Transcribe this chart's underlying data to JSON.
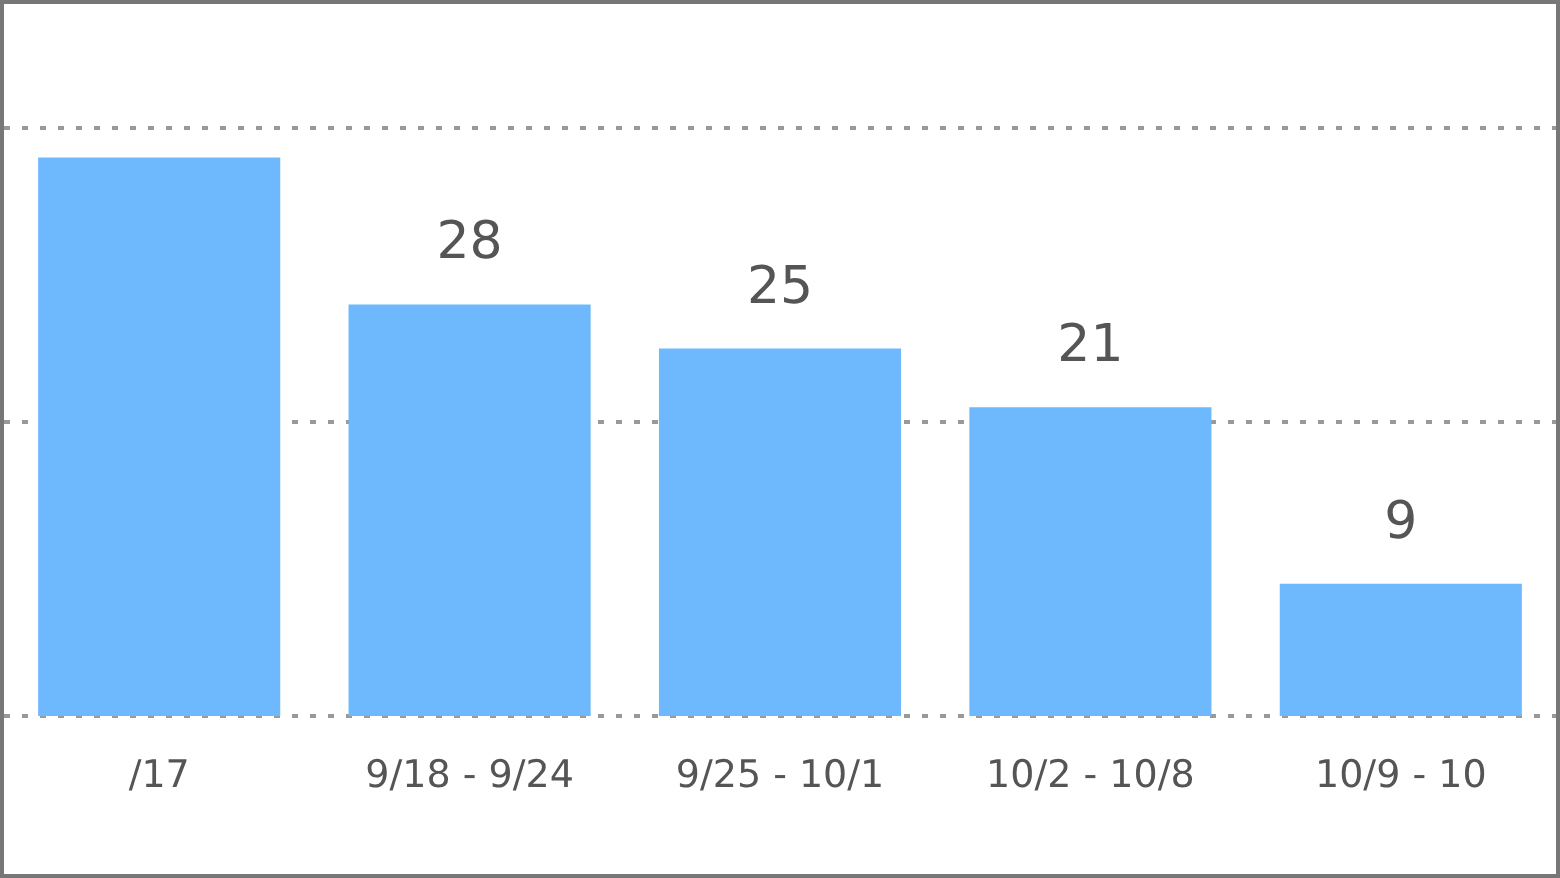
{
  "chart_data": {
    "type": "bar",
    "categories": [
      "/17",
      "9/18 - 9/24",
      "9/25 - 10/1",
      "10/2 - 10/8",
      "10/9 - 10"
    ],
    "values": [
      38,
      28,
      25,
      21,
      9
    ],
    "value_labels": [
      null,
      "28",
      "25",
      "21",
      "9"
    ],
    "color": "#6eb9fe",
    "ylim": [
      0,
      40
    ],
    "yticks": [
      {
        "value": 0,
        "label": null
      },
      {
        "value": 20,
        "label": null
      },
      {
        "value": 40,
        "label": null
      }
    ],
    "grid": "y"
  }
}
